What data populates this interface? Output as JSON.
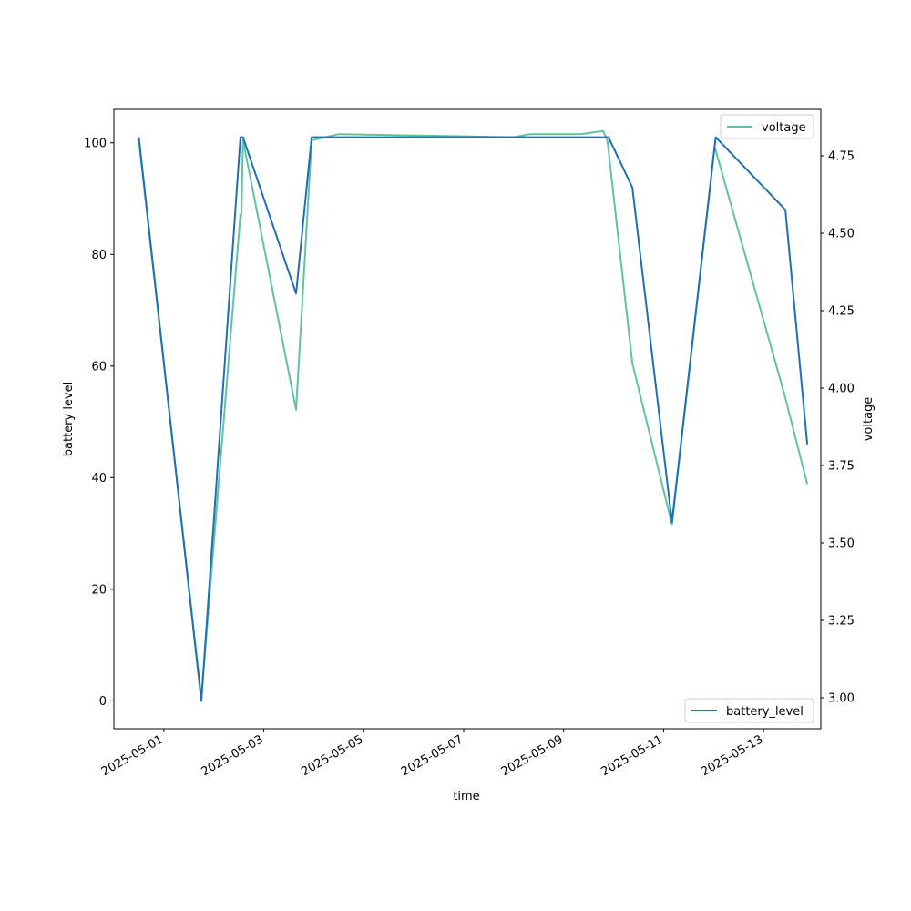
{
  "chart_data": {
    "type": "line",
    "xlabel": "time",
    "ylabel_left": "battery level",
    "ylabel_right": "voltage",
    "x_ticks": [
      "2025-05-01",
      "2025-05-03",
      "2025-05-05",
      "2025-05-07",
      "2025-05-09",
      "2025-05-11",
      "2025-05-13"
    ],
    "y_ticks_left": [
      "0",
      "20",
      "40",
      "60",
      "80",
      "100"
    ],
    "y_ticks_right": [
      "3.00",
      "3.25",
      "3.50",
      "3.75",
      "4.00",
      "4.25",
      "4.50",
      "4.75"
    ],
    "xlim": [
      "2025-04-30 00:00",
      "2025-05-14 03:30"
    ],
    "ylim_left": [
      -5,
      106
    ],
    "ylim_right": [
      2.9,
      4.9
    ],
    "grid": false,
    "legends": [
      {
        "position": "top-right",
        "entries": [
          "voltage"
        ]
      },
      {
        "position": "bottom-right",
        "entries": [
          "battery_level"
        ]
      }
    ],
    "colors": {
      "battery_level": "#1f6fb4",
      "voltage": "#5fc2a0"
    },
    "series": [
      {
        "name": "battery_level",
        "axis": "left",
        "points": [
          [
            "2025-04-30 12:00",
            101
          ],
          [
            "2025-05-01 18:00",
            0
          ],
          [
            "2025-05-02 12:45",
            101
          ],
          [
            "2025-05-02 14:00",
            101
          ],
          [
            "2025-05-03 15:30",
            73
          ],
          [
            "2025-05-03 23:00",
            101
          ],
          [
            "2025-05-09 21:30",
            101
          ],
          [
            "2025-05-10 09:00",
            92
          ],
          [
            "2025-05-11 04:00",
            32
          ],
          [
            "2025-05-12 01:00",
            101
          ],
          [
            "2025-05-13 10:30",
            88
          ],
          [
            "2025-05-13 21:00",
            46
          ]
        ]
      },
      {
        "name": "voltage",
        "axis": "right",
        "points": [
          [
            "2025-04-30 12:00",
            4.8
          ],
          [
            "2025-05-01 18:00",
            3.0
          ],
          [
            "2025-05-02 12:45",
            4.56
          ],
          [
            "2025-05-02 13:00",
            4.55
          ],
          [
            "2025-05-02 13:15",
            4.56
          ],
          [
            "2025-05-02 14:00",
            4.8
          ],
          [
            "2025-05-03 15:30",
            3.93
          ],
          [
            "2025-05-03 23:00",
            4.8
          ],
          [
            "2025-05-04 12:00",
            4.82
          ],
          [
            "2025-05-08 00:00",
            4.81
          ],
          [
            "2025-05-08 08:00",
            4.82
          ],
          [
            "2025-05-09 08:00",
            4.82
          ],
          [
            "2025-05-09 19:00",
            4.83
          ],
          [
            "2025-05-09 21:00",
            4.8
          ],
          [
            "2025-05-10 09:00",
            4.08
          ],
          [
            "2025-05-11 04:00",
            3.56
          ],
          [
            "2025-05-12 00:30",
            4.78
          ],
          [
            "2025-05-13 10:00",
            3.98
          ],
          [
            "2025-05-13 21:00",
            3.69
          ]
        ]
      }
    ]
  }
}
